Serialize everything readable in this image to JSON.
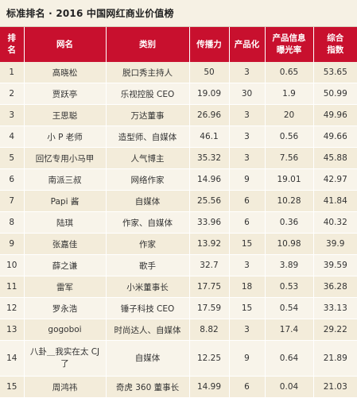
{
  "title": "标准排名 · 2016 中国网红商业价值榜",
  "headers": {
    "rank": [
      "排",
      "名"
    ],
    "name": "网名",
    "category": "类别",
    "reach": "传播力",
    "monetization": "产品化",
    "exposure": [
      "产品信息",
      "曝光率"
    ],
    "total": [
      "综合",
      "指数"
    ]
  },
  "rows": [
    {
      "rank": "1",
      "name": "高晓松",
      "category": "脱口秀主持人",
      "reach": "50",
      "monetization": "3",
      "exposure": "0.65",
      "total": "53.65"
    },
    {
      "rank": "2",
      "name": "贾跃亭",
      "category": "乐视控股 CEO",
      "reach": "19.09",
      "monetization": "30",
      "exposure": "1.9",
      "total": "50.99"
    },
    {
      "rank": "3",
      "name": "王思聪",
      "category": "万达董事",
      "reach": "26.96",
      "monetization": "3",
      "exposure": "20",
      "total": "49.96"
    },
    {
      "rank": "4",
      "name": "小 P 老师",
      "category": "造型师、自媒体",
      "reach": "46.1",
      "monetization": "3",
      "exposure": "0.56",
      "total": "49.66"
    },
    {
      "rank": "5",
      "name": "回忆专用小马甲",
      "category": "人气博主",
      "reach": "35.32",
      "monetization": "3",
      "exposure": "7.56",
      "total": "45.88"
    },
    {
      "rank": "6",
      "name": "南派三叔",
      "category": "网络作家",
      "reach": "14.96",
      "monetization": "9",
      "exposure": "19.01",
      "total": "42.97"
    },
    {
      "rank": "7",
      "name": "Papi 酱",
      "category": "自媒体",
      "reach": "25.56",
      "monetization": "6",
      "exposure": "10.28",
      "total": "41.84"
    },
    {
      "rank": "8",
      "name": "陆琪",
      "category": "作家、自媒体",
      "reach": "33.96",
      "monetization": "6",
      "exposure": "0.36",
      "total": "40.32"
    },
    {
      "rank": "9",
      "name": "张嘉佳",
      "category": "作家",
      "reach": "13.92",
      "monetization": "15",
      "exposure": "10.98",
      "total": "39.9"
    },
    {
      "rank": "10",
      "name": "薛之谦",
      "category": "歌手",
      "reach": "32.7",
      "monetization": "3",
      "exposure": "3.89",
      "total": "39.59"
    },
    {
      "rank": "11",
      "name": "雷军",
      "category": "小米董事长",
      "reach": "17.75",
      "monetization": "18",
      "exposure": "0.53",
      "total": "36.28"
    },
    {
      "rank": "12",
      "name": "罗永浩",
      "category": "锤子科技 CEO",
      "reach": "17.59",
      "monetization": "15",
      "exposure": "0.54",
      "total": "33.13"
    },
    {
      "rank": "13",
      "name": "gogoboi",
      "category": "时尚达人、自媒体",
      "reach": "8.82",
      "monetization": "3",
      "exposure": "17.4",
      "total": "29.22"
    },
    {
      "rank": "14",
      "name": "八卦＿我实在太 CJ 了",
      "category": "自媒体",
      "reach": "12.25",
      "monetization": "9",
      "exposure": "0.64",
      "total": "21.89",
      "tall": true
    },
    {
      "rank": "15",
      "name": "周鸿祎",
      "category": "奇虎 360 董事长",
      "reach": "14.99",
      "monetization": "6",
      "exposure": "0.04",
      "total": "21.03"
    }
  ],
  "colors": {
    "header_bg": "#c8102e",
    "header_text": "#ffffff",
    "row_odd": "#f3ecda",
    "row_even": "#f8f4ea"
  }
}
